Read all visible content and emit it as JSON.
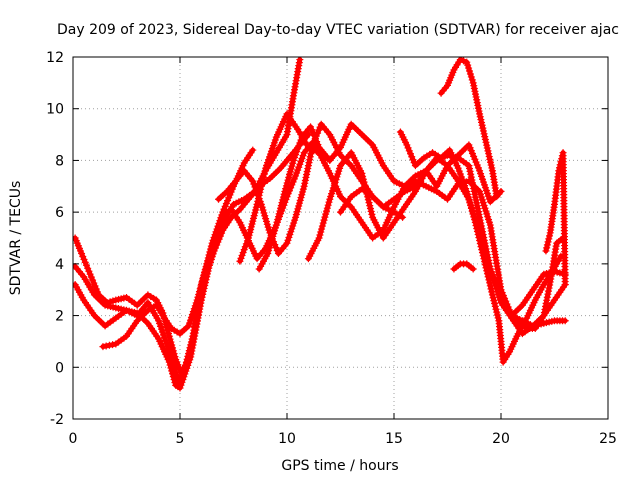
{
  "chart_data": {
    "type": "scatter",
    "title": "Day 209 of 2023, Sidereal Day-to-day VTEC variation (SDTVAR) for receiver ajac",
    "xlabel": "GPS time / hours",
    "ylabel": "SDTVAR / TECUs",
    "xlim": [
      0,
      25
    ],
    "ylim": [
      -2,
      12
    ],
    "xticks": [
      "0",
      "5",
      "10",
      "15",
      "20",
      "25"
    ],
    "yticks": [
      "-2",
      "0",
      "2",
      "4",
      "6",
      "8",
      "10",
      "12"
    ],
    "grid": true,
    "marker": "plus",
    "color": "#ff0000",
    "series": [
      {
        "x": [
          0.1,
          0.5,
          1.0,
          1.5,
          2.0,
          2.5,
          3.0,
          3.5,
          4.0,
          4.5,
          4.8,
          5.0,
          5.3,
          5.6,
          6.0,
          6.5,
          7.0,
          7.5,
          8.0,
          8.4
        ],
        "y": [
          3.9,
          3.5,
          2.8,
          2.4,
          2.3,
          2.2,
          2.0,
          2.5,
          1.8,
          0.6,
          -0.2,
          -0.6,
          0.2,
          1.2,
          3.2,
          4.8,
          6.0,
          7.0,
          7.9,
          8.4
        ]
      },
      {
        "x": [
          0.1,
          0.5,
          1.0,
          1.5,
          2.0,
          2.5,
          3.0,
          3.5,
          4.0,
          4.5,
          4.8,
          5.0,
          5.5,
          6.0,
          6.5,
          7.0,
          7.5,
          8.0,
          8.5,
          9.0,
          9.5,
          10.0,
          10.3,
          10.6
        ],
        "y": [
          3.2,
          2.6,
          2.0,
          1.6,
          1.9,
          2.2,
          2.1,
          1.7,
          1.1,
          0.2,
          -0.7,
          -0.8,
          0.4,
          2.6,
          4.4,
          5.6,
          6.3,
          6.5,
          6.8,
          7.6,
          8.3,
          9.0,
          10.5,
          11.9
        ]
      },
      {
        "x": [
          0.1,
          0.4,
          0.8,
          1.2,
          1.6,
          2.0,
          2.5,
          3.0,
          3.5,
          3.9,
          4.2,
          4.5,
          4.8,
          5.1,
          5.4,
          5.8,
          6.2,
          6.6,
          7.0,
          7.4,
          7.8,
          8.2,
          8.7,
          9.2,
          9.7,
          10.2,
          10.6,
          11.0
        ],
        "y": [
          5.0,
          4.4,
          3.6,
          2.8,
          2.5,
          2.6,
          2.7,
          2.4,
          2.8,
          2.6,
          2.1,
          1.2,
          0.3,
          -0.3,
          0.4,
          1.8,
          3.5,
          4.5,
          5.3,
          5.8,
          6.1,
          6.5,
          7.0,
          7.3,
          7.7,
          8.2,
          8.6,
          9.0
        ]
      },
      {
        "x": [
          1.4,
          2.0,
          2.5,
          3.0,
          3.5,
          3.9,
          4.2,
          4.6,
          5.0,
          5.4,
          5.8,
          6.2,
          6.6,
          7.0,
          7.4,
          7.8,
          8.2,
          8.6,
          9.0,
          9.5,
          10.0,
          10.4,
          10.8,
          11.2,
          11.6,
          12.0
        ],
        "y": [
          0.8,
          0.9,
          1.2,
          1.8,
          2.2,
          2.4,
          2.0,
          1.5,
          1.3,
          1.6,
          2.6,
          3.8,
          4.8,
          5.9,
          6.1,
          5.6,
          4.9,
          4.2,
          4.6,
          5.5,
          6.6,
          7.4,
          8.3,
          8.7,
          8.3,
          8.0
        ]
      },
      {
        "x": [
          6.8,
          7.2,
          7.6,
          8.0,
          8.4,
          8.8,
          9.2,
          9.6,
          10.0,
          10.4,
          10.8,
          11.2,
          11.6,
          12.0,
          12.5,
          13.0,
          13.5,
          14.0,
          14.5,
          15.0,
          15.4
        ],
        "y": [
          6.5,
          6.8,
          7.2,
          7.6,
          7.2,
          6.3,
          5.2,
          4.4,
          4.8,
          5.8,
          7.0,
          8.6,
          9.4,
          9.0,
          8.2,
          7.8,
          7.2,
          6.6,
          6.2,
          6.0,
          5.8
        ]
      },
      {
        "x": [
          7.8,
          8.2,
          8.6,
          9.0,
          9.5,
          10.0,
          10.5,
          11.0,
          11.5,
          12.0,
          12.5,
          13.0,
          13.5,
          14.0,
          14.5,
          15.0,
          15.5,
          16.0,
          16.5,
          17.0,
          17.5,
          18.0,
          18.5,
          19.0,
          19.5,
          20.0
        ],
        "y": [
          4.1,
          5.0,
          6.3,
          7.7,
          8.9,
          9.8,
          9.2,
          8.5,
          8.3,
          7.5,
          6.6,
          6.2,
          5.6,
          5.0,
          5.3,
          6.2,
          7.0,
          7.4,
          7.6,
          7.0,
          7.8,
          8.2,
          8.6,
          7.6,
          6.4,
          6.8
        ]
      },
      {
        "x": [
          8.7,
          9.1,
          9.5,
          9.9,
          10.3,
          10.7,
          11.1,
          11.5,
          12.0,
          12.5,
          13.0,
          13.5,
          14.0,
          14.5,
          15.0,
          15.5,
          16.0,
          16.5,
          17.0,
          17.5,
          18.0,
          18.5,
          19.0,
          19.5,
          20.0,
          20.5,
          21.0,
          21.5,
          22.0,
          22.5,
          23.0
        ],
        "y": [
          3.8,
          4.4,
          5.5,
          6.8,
          8.0,
          8.9,
          9.3,
          8.5,
          8.0,
          8.5,
          9.4,
          9.0,
          8.6,
          7.8,
          7.2,
          7.0,
          7.2,
          7.0,
          6.8,
          6.5,
          7.1,
          7.2,
          6.8,
          5.5,
          3.0,
          2.0,
          1.8,
          1.6,
          1.7,
          1.8,
          1.8
        ]
      },
      {
        "x": [
          11.0,
          11.5,
          12.0,
          12.5,
          13.0,
          13.5,
          14.0,
          14.5,
          15.0,
          15.5,
          16.0,
          16.5,
          17.0,
          17.5,
          18.0,
          18.5,
          19.0,
          19.5,
          20.0,
          20.5,
          21.0,
          21.5,
          22.0,
          22.5,
          23.0
        ],
        "y": [
          4.2,
          5.0,
          6.5,
          7.8,
          8.3,
          7.5,
          5.8,
          5.0,
          5.6,
          6.2,
          6.8,
          7.6,
          8.0,
          8.2,
          8.1,
          7.8,
          5.8,
          3.8,
          2.5,
          1.9,
          1.3,
          1.6,
          2.0,
          2.6,
          3.2
        ]
      },
      {
        "x": [
          12.5,
          13.0,
          13.5,
          14.0,
          14.5,
          15.0,
          15.5,
          16.0,
          16.5,
          17.0,
          17.5,
          18.0,
          18.5,
          19.0,
          19.5,
          20.0,
          20.5,
          21.0,
          21.5,
          22.0,
          22.5,
          23.0
        ],
        "y": [
          6.0,
          6.6,
          6.9,
          6.6,
          6.2,
          6.5,
          6.8,
          7.0,
          7.6,
          8.1,
          7.8,
          7.2,
          6.5,
          5.2,
          3.8,
          2.8,
          2.0,
          2.4,
          3.0,
          3.6,
          3.7,
          3.6
        ]
      },
      {
        "x": [
          15.3,
          15.6,
          16.0,
          16.4,
          16.8,
          17.2,
          17.6,
          18.0,
          18.4,
          18.8,
          19.2,
          19.6,
          19.9,
          20.1,
          20.4,
          20.8,
          21.2,
          21.6,
          22.0,
          22.4,
          22.8
        ],
        "y": [
          9.1,
          8.6,
          7.8,
          8.1,
          8.3,
          8.1,
          8.4,
          7.7,
          6.8,
          5.6,
          4.2,
          2.8,
          1.8,
          0.2,
          0.6,
          1.3,
          1.9,
          2.6,
          3.2,
          3.7,
          4.3
        ]
      },
      {
        "x": [
          17.2,
          17.5,
          17.8,
          18.1,
          18.4,
          18.7,
          19.0,
          19.3,
          19.6,
          19.8,
          20.0
        ],
        "y": [
          10.6,
          10.9,
          11.5,
          11.9,
          11.8,
          11.0,
          9.8,
          8.7,
          7.6,
          6.6,
          6.8
        ]
      },
      {
        "x": [
          17.8,
          18.1,
          18.4,
          18.7
        ],
        "y": [
          3.8,
          4.0,
          4.0,
          3.8
        ]
      },
      {
        "x": [
          20.8,
          21.2,
          21.6,
          22.0,
          22.3,
          22.6,
          22.9
        ],
        "y": [
          1.8,
          1.5,
          1.5,
          2.0,
          3.3,
          4.8,
          5.0
        ]
      },
      {
        "x": [
          22.1,
          22.3,
          22.5,
          22.7,
          22.9,
          23.0
        ],
        "y": [
          4.5,
          5.2,
          6.3,
          7.6,
          8.3,
          3.2
        ]
      }
    ]
  }
}
